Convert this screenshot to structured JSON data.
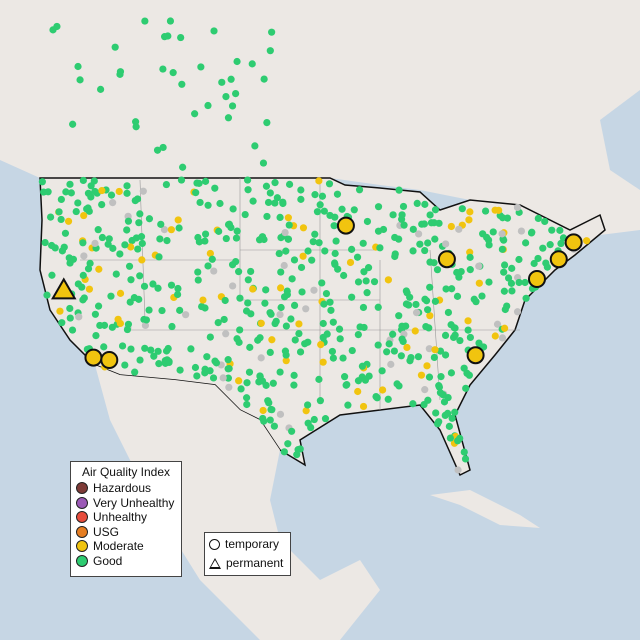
{
  "legend": {
    "title": "Air Quality Index",
    "categories": [
      {
        "label": "Hazardous",
        "color": "#7e3b37"
      },
      {
        "label": "Very Unhealthy",
        "color": "#9b59b6"
      },
      {
        "label": "Unhealthy",
        "color": "#e74c3c"
      },
      {
        "label": "USG",
        "color": "#e67e22"
      },
      {
        "label": "Moderate",
        "color": "#f1c40f"
      },
      {
        "label": "Good",
        "color": "#2ecc71"
      }
    ],
    "types": [
      {
        "label": "temporary",
        "shape": "circle"
      },
      {
        "label": "permanent",
        "shape": "triangle"
      }
    ]
  },
  "colors": {
    "ocean": "#c6d6e4",
    "land": "#ece8e4",
    "no_data": "#c0c0c0"
  },
  "large_markers": [
    {
      "lon": -93.1,
      "lat": 45.2,
      "category": "Moderate",
      "type": "temporary"
    },
    {
      "lon": -82.9,
      "lat": 42.4,
      "category": "Moderate",
      "type": "temporary"
    },
    {
      "lon": -73.8,
      "lat": 40.75,
      "category": "Moderate",
      "type": "temporary"
    },
    {
      "lon": -71.6,
      "lat": 42.4,
      "category": "Moderate",
      "type": "temporary"
    },
    {
      "lon": -70.1,
      "lat": 43.8,
      "category": "Moderate",
      "type": "temporary"
    },
    {
      "lon": -80.0,
      "lat": 34.4,
      "category": "Moderate",
      "type": "temporary"
    },
    {
      "lon": -118.6,
      "lat": 34.2,
      "category": "Moderate",
      "type": "temporary"
    },
    {
      "lon": -117.0,
      "lat": 34.0,
      "category": "Moderate",
      "type": "temporary"
    },
    {
      "lon": -121.6,
      "lat": 39.8,
      "category": "Moderate",
      "type": "permanent"
    }
  ]
}
